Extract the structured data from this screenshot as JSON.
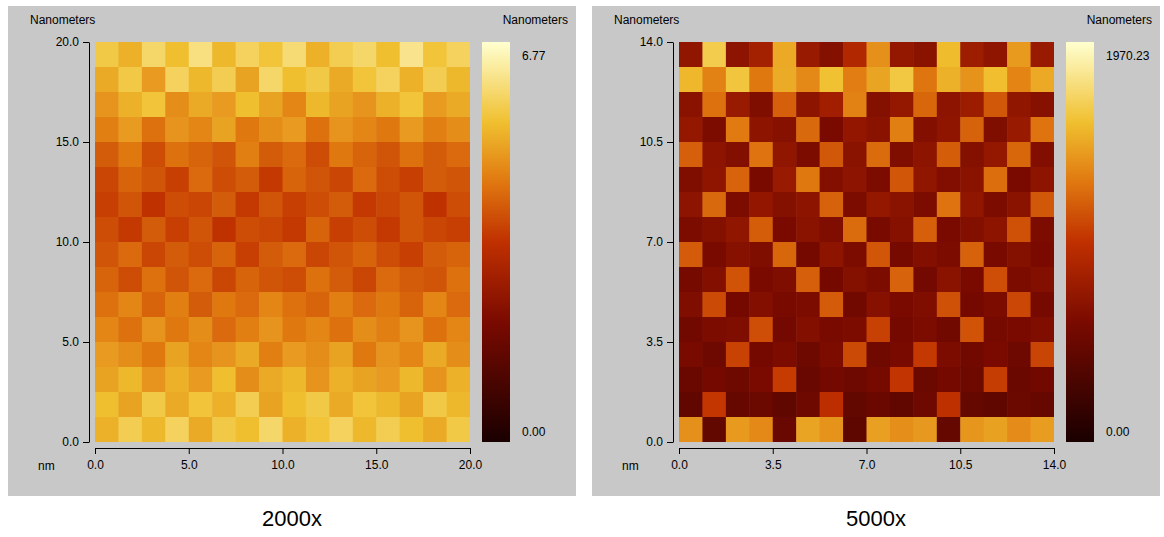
{
  "chart_data": [
    {
      "type": "heatmap",
      "title": "2000x",
      "y_label": "Nanometers",
      "x_label": "nm",
      "colorbar_label": "Nanometers",
      "xlim": [
        0,
        20
      ],
      "ylim": [
        0,
        20
      ],
      "xticks": [
        {
          "value": 0,
          "label": "0.0"
        },
        {
          "value": 5,
          "label": "5.0"
        },
        {
          "value": 10,
          "label": "10.0"
        },
        {
          "value": 15,
          "label": "15.0"
        },
        {
          "value": 20,
          "label": "20.0"
        }
      ],
      "yticks": [
        {
          "value": 0,
          "label": "0.0"
        },
        {
          "value": 5,
          "label": "5.0"
        },
        {
          "value": 10,
          "label": "10.0"
        },
        {
          "value": 15,
          "label": "15.0"
        },
        {
          "value": 20,
          "label": "20.0"
        }
      ],
      "color_range": [
        0,
        6.77
      ],
      "color_ticks": [
        {
          "value": 0,
          "label": "0.00"
        },
        6.77
      ],
      "cells": [
        [
          5.6,
          5.2,
          5.9,
          5.4,
          6.1,
          5.3,
          5.8,
          5.5,
          6.0,
          5.2,
          5.7,
          5.9,
          5.4,
          6.2,
          5.5,
          5.8
        ],
        [
          5.1,
          5.6,
          4.9,
          5.8,
          5.3,
          5.7,
          5.0,
          5.9,
          5.4,
          5.6,
          5.1,
          5.5,
          5.8,
          5.2,
          5.7,
          5.3
        ],
        [
          4.8,
          5.2,
          5.5,
          4.7,
          5.1,
          4.9,
          5.4,
          5.0,
          4.6,
          5.3,
          5.0,
          4.8,
          5.2,
          5.5,
          4.9,
          5.1
        ],
        [
          4.5,
          4.9,
          4.3,
          4.8,
          4.6,
          5.0,
          4.4,
          4.7,
          4.9,
          4.3,
          4.8,
          4.6,
          4.4,
          4.9,
          4.5,
          4.7
        ],
        [
          4.0,
          4.4,
          3.8,
          4.3,
          4.1,
          3.9,
          4.5,
          4.0,
          4.2,
          3.8,
          4.4,
          4.1,
          3.9,
          4.3,
          4.0,
          4.2
        ],
        [
          3.7,
          4.1,
          3.9,
          3.6,
          4.2,
          3.8,
          4.0,
          3.5,
          4.1,
          3.9,
          3.7,
          4.2,
          3.8,
          3.6,
          4.0,
          3.9
        ],
        [
          3.6,
          3.9,
          3.4,
          3.8,
          3.7,
          4.0,
          3.5,
          3.9,
          3.6,
          3.8,
          4.0,
          3.5,
          3.7,
          3.9,
          3.4,
          3.8
        ],
        [
          3.8,
          3.5,
          4.0,
          3.6,
          3.9,
          3.4,
          3.8,
          3.7,
          3.5,
          4.1,
          3.6,
          3.8,
          3.5,
          3.9,
          3.7,
          3.6
        ],
        [
          3.9,
          4.2,
          3.7,
          4.0,
          3.8,
          4.1,
          3.6,
          4.0,
          4.2,
          3.7,
          3.9,
          4.1,
          3.8,
          3.6,
          4.0,
          4.1
        ],
        [
          4.1,
          3.8,
          4.3,
          3.9,
          4.2,
          3.7,
          4.1,
          3.9,
          3.8,
          4.3,
          4.0,
          3.7,
          4.2,
          4.0,
          3.9,
          4.3
        ],
        [
          4.3,
          4.6,
          4.1,
          4.5,
          4.0,
          4.4,
          4.2,
          4.6,
          4.3,
          4.1,
          4.5,
          4.2,
          4.4,
          4.1,
          4.6,
          4.2
        ],
        [
          4.6,
          4.3,
          4.8,
          4.4,
          4.7,
          4.2,
          4.5,
          4.8,
          4.4,
          4.6,
          4.3,
          4.7,
          4.5,
          4.8,
          4.3,
          4.6
        ],
        [
          4.9,
          4.7,
          4.4,
          5.0,
          4.6,
          4.8,
          5.1,
          4.5,
          4.9,
          4.7,
          5.0,
          4.4,
          4.8,
          4.6,
          5.1,
          4.7
        ],
        [
          5.0,
          5.3,
          4.8,
          5.2,
          4.9,
          5.4,
          4.7,
          5.1,
          5.3,
          4.8,
          5.2,
          5.0,
          4.9,
          5.3,
          4.8,
          5.2
        ],
        [
          5.4,
          5.0,
          5.6,
          5.1,
          5.5,
          5.2,
          5.7,
          5.0,
          5.4,
          5.6,
          5.1,
          5.5,
          5.3,
          5.0,
          5.6,
          5.3
        ],
        [
          5.2,
          5.7,
          5.3,
          5.8,
          5.1,
          5.6,
          5.4,
          5.9,
          5.2,
          5.5,
          5.8,
          5.3,
          5.7,
          5.4,
          5.1,
          5.6
        ]
      ]
    },
    {
      "type": "heatmap",
      "title": "5000x",
      "y_label": "Nanometers",
      "x_label": "nm",
      "colorbar_label": "Nanometers",
      "xlim": [
        0,
        14
      ],
      "ylim": [
        0,
        14
      ],
      "xticks": [
        {
          "value": 0,
          "label": "0.0"
        },
        3.5,
        {
          "value": 7,
          "label": "7.0"
        },
        10.5,
        {
          "value": 14,
          "label": "14.0"
        }
      ],
      "yticks": [
        {
          "value": 0,
          "label": "0.0"
        },
        3.5,
        {
          "value": 7,
          "label": "7.0"
        },
        10.5,
        {
          "value": 14,
          "label": "14.0"
        }
      ],
      "color_range": [
        0,
        1970.23
      ],
      "color_ticks": [
        {
          "value": 0,
          "label": "0.00"
        },
        1970.23
      ],
      "cells": [
        [
          720,
          1650,
          690,
          820,
          1480,
          760,
          650,
          900,
          1380,
          740,
          680,
          1560,
          790,
          710,
          1420,
          760
        ],
        [
          1540,
          1320,
          1610,
          1280,
          1490,
          1350,
          1580,
          1300,
          1460,
          1620,
          1270,
          1510,
          1390,
          1570,
          1330,
          1480
        ],
        [
          680,
          1250,
          760,
          620,
          1180,
          700,
          810,
          1320,
          650,
          740,
          1210,
          690,
          780,
          1150,
          720,
          660
        ],
        [
          740,
          610,
          1290,
          700,
          660,
          1220,
          590,
          730,
          680,
          1310,
          640,
          710,
          1190,
          620,
          760,
          1260
        ],
        [
          1180,
          690,
          640,
          1260,
          720,
          600,
          1150,
          680,
          1230,
          620,
          700,
          1170,
          650,
          740,
          1210,
          630
        ],
        [
          620,
          710,
          1200,
          580,
          760,
          1280,
          640,
          690,
          600,
          1140,
          720,
          630,
          680,
          1240,
          590,
          700
        ],
        [
          690,
          1220,
          600,
          730,
          650,
          700,
          1190,
          610,
          740,
          680,
          600,
          1260,
          720,
          610,
          680,
          1150
        ],
        [
          600,
          650,
          720,
          1170,
          590,
          680,
          620,
          1230,
          580,
          660,
          1180,
          590,
          640,
          700,
          1120,
          610
        ],
        [
          1160,
          580,
          660,
          620,
          1210,
          560,
          700,
          600,
          1140,
          570,
          640,
          610,
          1190,
          580,
          650,
          590
        ],
        [
          570,
          640,
          1130,
          590,
          620,
          1180,
          560,
          650,
          600,
          1200,
          550,
          680,
          590,
          1110,
          600,
          640
        ],
        [
          620,
          1090,
          560,
          640,
          580,
          610,
          1160,
          540,
          660,
          590,
          620,
          1120,
          560,
          610,
          1080,
          570
        ],
        [
          540,
          600,
          620,
          1110,
          550,
          640,
          580,
          600,
          1050,
          560,
          610,
          540,
          1130,
          570,
          590,
          620
        ],
        [
          580,
          510,
          1060,
          560,
          600,
          520,
          610,
          1090,
          530,
          580,
          1020,
          600,
          540,
          590,
          510,
          1070
        ],
        [
          490,
          560,
          520,
          590,
          1030,
          480,
          550,
          510,
          570,
          1000,
          500,
          560,
          520,
          1040,
          490,
          540
        ],
        [
          440,
          1010,
          470,
          500,
          430,
          520,
          960,
          450,
          490,
          440,
          510,
          980,
          460,
          430,
          500,
          470
        ],
        [
          1380,
          450,
          1420,
          1350,
          480,
          1460,
          1390,
          420,
          1440,
          1370,
          1410,
          460,
          1400,
          1450,
          1360,
          1430
        ]
      ]
    }
  ]
}
